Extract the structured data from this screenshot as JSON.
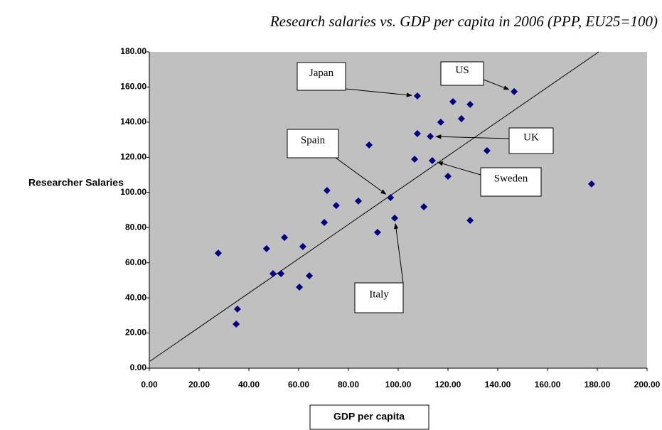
{
  "chart_data": {
    "type": "scatter",
    "title": "Research salaries vs. GDP per capita in 2006 (PPP, EU25=100)",
    "x_label": "GDP per capita",
    "y_label": "Researcher Salaries",
    "color": "#000080",
    "background": "#c0c0c0",
    "x": [
      27.7,
      35.4,
      34.9,
      47.1,
      49.7,
      52.9,
      54.3,
      60.3,
      61.7,
      64.3,
      70.3,
      71.4,
      75.1,
      84,
      88.3,
      91.7,
      96.9,
      98.6,
      106.6,
      107.7,
      107.7,
      110.3,
      112.9,
      113.7,
      117.1,
      120,
      122,
      125.4,
      128.9,
      128.9,
      135.7,
      146.6,
      177.7
    ],
    "values": [
      65.5,
      33.6,
      25.1,
      68,
      53.8,
      53.8,
      74.4,
      46.1,
      69.2,
      52.6,
      82.9,
      101.1,
      92.6,
      95.1,
      127,
      77.3,
      97.1,
      85.4,
      118.9,
      133.5,
      154.9,
      91.8,
      131.9,
      118.1,
      140,
      109.2,
      151.7,
      142,
      150.1,
      84.1,
      123.8,
      157.4,
      104.8
    ],
    "trendline": {
      "x": [
        0.3,
        180.6
      ],
      "y": [
        4,
        180
      ]
    },
    "annotations": [
      {
        "text": "Japan",
        "x": 107.7,
        "y": 154.9
      },
      {
        "text": "US",
        "x": 146.6,
        "y": 157.4
      },
      {
        "text": "UK",
        "x": 112.9,
        "y": 131.9
      },
      {
        "text": "Spain",
        "x": 96.9,
        "y": 97.1
      },
      {
        "text": "Sweden",
        "x": 113.7,
        "y": 118.1
      },
      {
        "text": "Italy",
        "x": 98.6,
        "y": 85.4
      }
    ],
    "xlim": [
      0,
      200
    ],
    "ylim": [
      0,
      180
    ],
    "xticks": [
      {
        "value": 0,
        "label": "0.00"
      },
      {
        "value": 20,
        "label": "20.00"
      },
      {
        "value": 40,
        "label": "40.00"
      },
      {
        "value": 60,
        "label": "60.00"
      },
      {
        "value": 80,
        "label": "80.00"
      },
      {
        "value": 100,
        "label": "100.00"
      },
      {
        "value": 120,
        "label": "120.00"
      },
      {
        "value": 140,
        "label": "140.00"
      },
      {
        "value": 160,
        "label": "160.00"
      },
      {
        "value": 180,
        "label": "180.00"
      },
      {
        "value": 200,
        "label": "200.00"
      }
    ],
    "yticks": [
      {
        "value": 0,
        "label": "0.00"
      },
      {
        "value": 20,
        "label": "20.00"
      },
      {
        "value": 40,
        "label": "40.00"
      },
      {
        "value": 60,
        "label": "60.00"
      },
      {
        "value": 80,
        "label": "80.00"
      },
      {
        "value": 100,
        "label": "100.00"
      },
      {
        "value": 120,
        "label": "120.00"
      },
      {
        "value": 140,
        "label": "140.00"
      },
      {
        "value": 160,
        "label": "160.00"
      },
      {
        "value": 180,
        "label": "180.00"
      }
    ]
  }
}
